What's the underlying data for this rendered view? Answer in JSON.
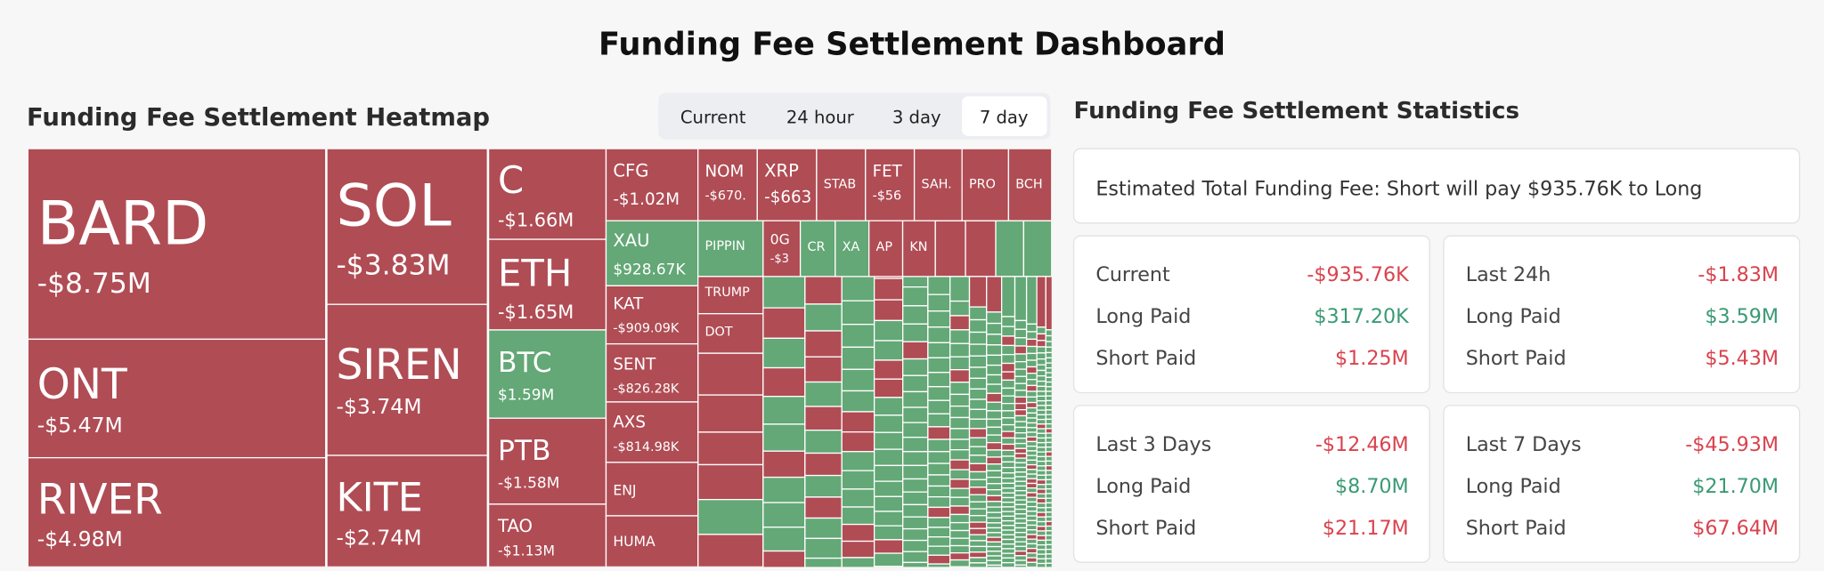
{
  "header": {
    "title": "Funding Fee Settlement Dashboard"
  },
  "heatmap": {
    "title": "Funding Fee Settlement Heatmap",
    "tabs": [
      "Current",
      "24 hour",
      "3 day",
      "7 day"
    ],
    "active_tab": 3,
    "tiles": [
      {
        "label": "BARD",
        "value": "-$8.75M"
      },
      {
        "label": "ONT",
        "value": "-$5.47M"
      },
      {
        "label": "RIVER",
        "value": "-$4.98M"
      },
      {
        "label": "SOL",
        "value": "-$3.83M"
      },
      {
        "label": "SIREN",
        "value": "-$3.74M"
      },
      {
        "label": "KITE",
        "value": "-$2.74M"
      },
      {
        "label": "C",
        "value": "-$1.66M"
      },
      {
        "label": "ETH",
        "value": "-$1.65M"
      },
      {
        "label": "BTC",
        "value": "$1.59M"
      },
      {
        "label": "PTB",
        "value": "-$1.58M"
      },
      {
        "label": "TAO",
        "value": "-$1.13M"
      },
      {
        "label": "CFG",
        "value": "-$1.02M"
      },
      {
        "label": "XAU",
        "value": "$928.67K"
      },
      {
        "label": "KAT",
        "value": "-$909.09K"
      },
      {
        "label": "SENT",
        "value": "-$826.28K"
      },
      {
        "label": "AXS",
        "value": "-$814.98K"
      },
      {
        "label": "ENJ"
      },
      {
        "label": "HUMA"
      },
      {
        "label": "NOM",
        "value": "-$670."
      },
      {
        "label": "XRP",
        "value": "-$663"
      },
      {
        "label": "STAB"
      },
      {
        "label": "FET",
        "value": "-$56"
      },
      {
        "label": "SAH."
      },
      {
        "label": "PRO"
      },
      {
        "label": "BCH"
      },
      {
        "label": "PIPPIN"
      },
      {
        "label": "0G",
        "value": "-$3"
      },
      {
        "label": "CR"
      },
      {
        "label": "XA"
      },
      {
        "label": "AP"
      },
      {
        "label": "KN"
      },
      {
        "label": "TRUMP"
      },
      {
        "label": "DOT"
      }
    ]
  },
  "stats": {
    "title": "Funding Fee Settlement Statistics",
    "estimate": "Estimated Total Funding Fee: Short will pay $935.76K to Long",
    "cards": [
      {
        "rows": [
          [
            "Current",
            "-$935.76K"
          ],
          [
            "Long Paid",
            "$317.20K"
          ],
          [
            "Short Paid",
            "$1.25M"
          ]
        ]
      },
      {
        "rows": [
          [
            "Last 24h",
            "-$1.83M"
          ],
          [
            "Long Paid",
            "$3.59M"
          ],
          [
            "Short Paid",
            "$5.43M"
          ]
        ]
      },
      {
        "rows": [
          [
            "Last 3 Days",
            "-$12.46M"
          ],
          [
            "Long Paid",
            "$8.70M"
          ],
          [
            "Short Paid",
            "$21.17M"
          ]
        ]
      },
      {
        "rows": [
          [
            "Last 7 Days",
            "-$45.93M"
          ],
          [
            "Long Paid",
            "$21.70M"
          ],
          [
            "Short Paid",
            "$67.64M"
          ]
        ]
      }
    ]
  }
}
